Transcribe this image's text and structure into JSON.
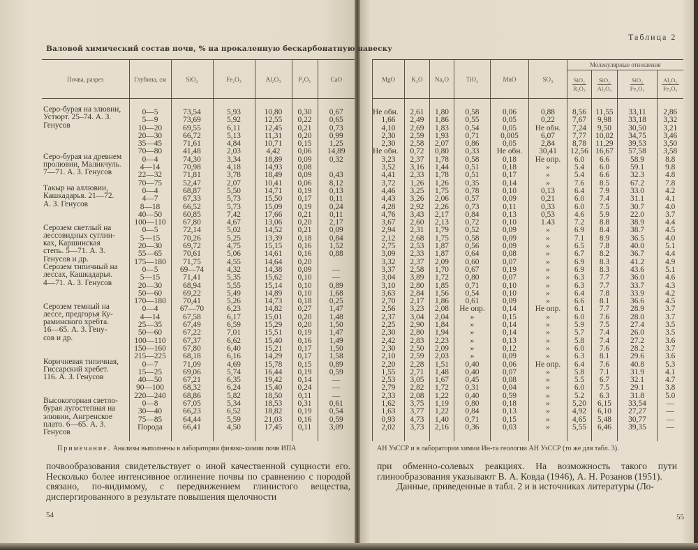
{
  "left_page": {
    "title": "Валовой химический состав почв, % на прокаленную бескарбонатную навеску",
    "page_number": "54",
    "note_label": "Примечание.",
    "note_text": " Анализы выполнены в лаборатории физико-химии почв ИПА",
    "paragraph": "почвообразования свидетельствует о иной качественной сущности его. Несколько более интенсивное оглинение почвы по сравнению с породой связано, по-видимому, с передвижением глинистого вещества, диспергированного в результате повышения щелочности"
  },
  "right_page": {
    "table_label": "Таблица 2",
    "page_number": "55",
    "note_text": "АН УзССР и в лаборатории химии Ин-та геологии АН УзССР (то же для табл. 3).",
    "paragraph1": "при обменно-солевых реакциях. На возможность такого пути глинообразования указывают В. А. Ковда (1946), А. Н. Розанов (1951).",
    "paragraph2": "Данные, приведенные в табл. 2 и в источниках литературы (Ло-"
  },
  "table": {
    "left_headers": [
      "Почва, разрез",
      "Глубина, см",
      "SiO₂",
      "Fe₂O₃",
      "Al₂O₃",
      "P₂O₅",
      "CaO"
    ],
    "right_headers": [
      "MgO",
      "K₂O",
      "Na₂O",
      "TiO₂",
      "MnO",
      "SO₃"
    ],
    "ratio_group_header": "Молекулярные отношения",
    "ratio_headers": [
      {
        "num": "SiO₂",
        "den": "R₂O₃"
      },
      {
        "num": "SiO₂",
        "den": "Al₂O₃"
      },
      {
        "num": "SiO₂",
        "den": "Fe₂O₃"
      },
      {
        "num": "Al₂O₃",
        "den": "Fe₂O₃"
      }
    ],
    "groups": [
      {
        "soil": "Серо-бурая на элювии,\nУстюрт. 25–74. А. З.\nГенусов",
        "rows": [
          [
            "0—5",
            "73,54",
            "5,93",
            "10,80",
            "0,30",
            "0,67",
            "Не обн.",
            "2,61",
            "1,80",
            "0,58",
            "0,06",
            "0,88",
            "8,56",
            "11,55",
            "33,11",
            "2,86"
          ],
          [
            "5—9",
            "73,69",
            "5,92",
            "12,55",
            "0,22",
            "0,65",
            "1,66",
            "2,49",
            "1,86",
            "0,55",
            "0,05",
            "0,22",
            "7,67",
            "9,98",
            "33,18",
            "3,32"
          ],
          [
            "10—20",
            "69,55",
            "6,11",
            "12,45",
            "0,21",
            "0,73",
            "4,10",
            "2,69",
            "1,83",
            "0,54",
            "0,05",
            "Не обн.",
            "7,24",
            "9,50",
            "30,50",
            "3,21"
          ],
          [
            "20—30",
            "66,72",
            "5,13",
            "11,31",
            "0,20",
            "0,99",
            "2,30",
            "2,59",
            "1,93",
            "0,71",
            "0,005",
            "6,07",
            "7,77",
            "10,02",
            "34,75",
            "3,46"
          ],
          [
            "35—45",
            "71,61",
            "4,84",
            "10,71",
            "0,15",
            "1,25",
            "2,30",
            "2,58",
            "2,07",
            "0,86",
            "0,05",
            "2,84",
            "8,78",
            "11,29",
            "39,53",
            "3,50"
          ],
          [
            "70—80",
            "41,48",
            "2,03",
            "4,42",
            "0,06",
            "14,89",
            "Не обн.",
            "0,72",
            "0,80",
            "0,33",
            "Не обн.",
            "30,41",
            "12,56",
            "16,67",
            "57,58",
            "3,58"
          ]
        ]
      },
      {
        "soil": "Серо-бурая на древнем\nпролювии, Маликчуль.\n7—71. А. З. Генусов",
        "rows": [
          [
            "0—4",
            "74,30",
            "3,34",
            "18,89",
            "0,09",
            "0,32",
            "3,23",
            "2,37",
            "1,78",
            "0,58",
            "0,18",
            "Не опр.",
            "6.0",
            "6.6",
            "58.9",
            "8.8"
          ],
          [
            "4—14",
            "70,98",
            "4,18",
            "14,93",
            "0,08",
            "",
            "3,52",
            "3,16",
            "1,44",
            "0,51",
            "0,18",
            "»",
            "5.4",
            "6.0",
            "59.1",
            "9.8"
          ],
          [
            "22—32",
            "71,81",
            "3,78",
            "18,49",
            "0,09",
            "0,43",
            "4,41",
            "2,33",
            "1,78",
            "0,51",
            "0,17",
            "»",
            "5.4",
            "6.6",
            "32.3",
            "4.8"
          ],
          [
            "70—75",
            "52,47",
            "2,07",
            "10,41",
            "0,06",
            "8,12",
            "3,72",
            "1,26",
            "1,26",
            "0,35",
            "0,14",
            "»",
            "7.6",
            "8.5",
            "67.2",
            "7.8"
          ]
        ]
      },
      {
        "soil": "Такыр на аллювии,\nКашкадарья. 21—72.\nА. З. Генусов",
        "rows": [
          [
            "0—4",
            "68,87",
            "5,50",
            "14,71",
            "0,19",
            "0,13",
            "4,46",
            "3,25",
            "1,75",
            "0,78",
            "0,10",
            "0,13",
            "6.4",
            "7.9",
            "33.0",
            "4.2"
          ],
          [
            "4—7",
            "67,33",
            "5,73",
            "15,50",
            "0,17",
            "0,11",
            "4,43",
            "3,26",
            "2,06",
            "0,57",
            "0,09",
            "0,21",
            "6.0",
            "7.4",
            "31.1",
            "4.1"
          ],
          [
            "8—18",
            "66,52",
            "5,73",
            "15,09",
            "0,19",
            "0,24",
            "4,28",
            "2,92",
            "2,26",
            "0,73",
            "0,11",
            "0,33",
            "6.0",
            "7.5",
            "30.7",
            "4.0"
          ],
          [
            "40—50",
            "60,85",
            "7,42",
            "17,66",
            "0,21",
            "0,11",
            "4,76",
            "3,43",
            "2,17",
            "0,84",
            "0,13",
            "0,53",
            "4.6",
            "5.9",
            "22.0",
            "3.7"
          ],
          [
            "100—110",
            "67,80",
            "4,67",
            "13,06",
            "0,20",
            "2,17",
            "3,67",
            "2,60",
            "2,13",
            "0,72",
            "0,10",
            "1.43",
            "7.2",
            "8.8",
            "38.9",
            "4.4"
          ]
        ]
      },
      {
        "soil": "Серозем светлый на\nлессовидных суглин-\nках, Каршинская\nстепь. 5—71. А. З.\nГенусов и др.",
        "rows": [
          [
            "0—5",
            "72,14",
            "5,02",
            "14,52",
            "0,21",
            "0,09",
            "2,94",
            "2,31",
            "1,79",
            "0,52",
            "0,09",
            "»",
            "6.9",
            "8.4",
            "38.7",
            "4.5"
          ],
          [
            "5—15",
            "70,26",
            "5,25",
            "13,39",
            "0,18",
            "0,84",
            "2,12",
            "2,68",
            "1,75",
            "0,58",
            "0,09",
            "»",
            "7.1",
            "8.9",
            "36.5",
            "4.0"
          ],
          [
            "20—30",
            "69,72",
            "4,75",
            "15,15",
            "0,16",
            "1,52",
            "2,75",
            "2,53",
            "1,87",
            "0,56",
            "0,09",
            "»",
            "6.5",
            "7.8",
            "40.0",
            "5.1"
          ],
          [
            "55—65",
            "70,61",
            "5,06",
            "14,61",
            "0,16",
            "0,88",
            "3,09",
            "2,33",
            "1,87",
            "0,64",
            "0,08",
            "»",
            "6.7",
            "8.2",
            "36.7",
            "4.4"
          ],
          [
            "175—180",
            "71,75",
            "4,55",
            "14,64",
            "0,20",
            "",
            "3,32",
            "2,37",
            "2,09",
            "0,60",
            "0,07",
            "»",
            "6.9",
            "8.3",
            "41.2",
            "4.9"
          ]
        ]
      },
      {
        "soil": "Серозем типичный на\nлессах, Кашкадарья.\n4—71. А. З. Генусов",
        "rows": [
          [
            "0—5",
            "69—74",
            "4,32",
            "14,38",
            "0,09",
            "—",
            "3,37",
            "2,58",
            "1,70",
            "0,67",
            "0,19",
            "»",
            "6.9",
            "8.3",
            "43.6",
            "5.1"
          ],
          [
            "5—15",
            "71,41",
            "5,35",
            "15,62",
            "0,10",
            "—",
            "3,04",
            "3,89",
            "1,72",
            "0,80",
            "0,07",
            "»",
            "6.3",
            "7.7",
            "36.0",
            "4.6"
          ],
          [
            "20—30",
            "68,94",
            "5,55",
            "15,14",
            "0,10",
            "0,89",
            "3,10",
            "2,80",
            "1,85",
            "0,71",
            "0,10",
            "»",
            "6.3",
            "7.7",
            "33.7",
            "4.3"
          ],
          [
            "50—60",
            "69,22",
            "5,49",
            "14,89",
            "0,10",
            "1,68",
            "3,63",
            "2,84",
            "1,56",
            "0,54",
            "0,10",
            "»",
            "6.4",
            "7.8",
            "33.9",
            "4.2"
          ],
          [
            "170—180",
            "70,41",
            "5,26",
            "14,73",
            "0,18",
            "0,25",
            "2,70",
            "2,17",
            "1,86",
            "0,61",
            "0,09",
            "»",
            "6.6",
            "8.1",
            "36.6",
            "4.5"
          ]
        ]
      },
      {
        "soil": "Серозем темный на\nлессе, предгорья Ку-\nраминского хребта.\n16—65. А. З. Гену-\nсов и др.",
        "rows": [
          [
            "0—4",
            "67—70",
            "6,23",
            "14,82",
            "0,27",
            "1,47",
            "2,56",
            "3,23",
            "2,08",
            "Не опр.",
            "0,14",
            "Не опр.",
            "6.1",
            "7.7",
            "28.9",
            "3.7"
          ],
          [
            "4—14",
            "67,58",
            "6,17",
            "15,01",
            "0,20",
            "1,48",
            "2,37",
            "3,04",
            "2,04",
            "»",
            "0,15",
            "»",
            "6.0",
            "7.6",
            "28.0",
            "3.7"
          ],
          [
            "25—35",
            "67,49",
            "6,59",
            "15,29",
            "0,20",
            "1,50",
            "2,25",
            "2,90",
            "1,84",
            "»",
            "0,14",
            "»",
            "5.9",
            "7.5",
            "27.4",
            "3.5"
          ],
          [
            "50—60",
            "67,22",
            "7,01",
            "15,51",
            "0,19",
            "1,47",
            "2,30",
            "2,80",
            "1,94",
            "»",
            "0,14",
            "»",
            "5.7",
            "7.4",
            "26.0",
            "3.5"
          ],
          [
            "100—110",
            "67,37",
            "6,62",
            "15,40",
            "0,16",
            "1,49",
            "2,42",
            "2,83",
            "2,23",
            "»",
            "0,13",
            "»",
            "5.8",
            "7.4",
            "27.2",
            "3.6"
          ],
          [
            "150—160",
            "67,80",
            "6,40",
            "15,21",
            "0,17",
            "1,50",
            "2,30",
            "2,50",
            "2,09",
            "»",
            "0,12",
            "»",
            "6.0",
            "7.6",
            "28.2",
            "3.7"
          ],
          [
            "215—225",
            "68,18",
            "6,16",
            "14,29",
            "0,17",
            "1,58",
            "2,10",
            "2,59",
            "2,03",
            "»",
            "0,09",
            "»",
            "6.3",
            "8.1",
            "29.6",
            "3.6"
          ]
        ]
      },
      {
        "soil": "Коричневая типичная,\nГиссарский хребет.\n116. А. З. Генусов",
        "rows": [
          [
            "0—7",
            "71,09",
            "4,69",
            "15,78",
            "0,15",
            "0,89",
            "2,20",
            "2,28",
            "1,51",
            "0,40",
            "0,06",
            "Не опр.",
            "6.4",
            "7.6",
            "40.8",
            "5.3"
          ],
          [
            "15—25",
            "69,06",
            "5,74",
            "16,44",
            "0,19",
            "0,59",
            "1,55",
            "2,71",
            "1,48",
            "0,40",
            "0,07",
            "»",
            "5.8",
            "7.1",
            "31.9",
            "4.1"
          ],
          [
            "40—50",
            "67,21",
            "6,35",
            "19,42",
            "0,14",
            "—",
            "2,53",
            "3,05",
            "1,67",
            "0,45",
            "0,08",
            "»",
            "5.5",
            "6.7",
            "32.1",
            "4.7"
          ],
          [
            "90—100",
            "68,32",
            "6,24",
            "15,40",
            "0,24",
            "—",
            "2,79",
            "2,82",
            "1,72",
            "0,31",
            "0,04",
            "»",
            "6.0",
            "7.5",
            "29.1",
            "3.8"
          ],
          [
            "220—240",
            "68,86",
            "5,82",
            "18,50",
            "0,11",
            "—",
            "2,33",
            "2,08",
            "1,22",
            "0,40",
            "0,59",
            "»",
            "5.2",
            "6.3",
            "31.8",
            "5.0"
          ]
        ]
      },
      {
        "soil": "Высокогорная светло-\nбурая лугостепная на\nэлювии, Ангренское\nплато. 6—65. А. З.\nГенусов",
        "rows": [
          [
            "0—8",
            "67,05",
            "5,34",
            "18,53",
            "0,31",
            "0,61",
            "1,62",
            "3,75",
            "1,19",
            "0,80",
            "0,18",
            "»",
            "5,20",
            "6,15",
            "33,54",
            "—"
          ],
          [
            "30—40",
            "66,23",
            "6,52",
            "18,82",
            "0,19",
            "0,54",
            "1,63",
            "3,77",
            "1,22",
            "0,84",
            "0,13",
            "»",
            "4,92",
            "6,10",
            "27,27",
            "—"
          ],
          [
            "75—85",
            "64,44",
            "5,59",
            "21,03",
            "0,16",
            "0,59",
            "0,93",
            "4,73",
            "1,40",
            "0,71",
            "0,15",
            "»",
            "4,65",
            "5,48",
            "30,77",
            "—"
          ],
          [
            "Порода",
            "66,41",
            "4,50",
            "17,45",
            "0,11",
            "3,09",
            "2,02",
            "3,73",
            "2,16",
            "0,36",
            "0,03",
            "»",
            "5,55",
            "6,46",
            "39,35",
            "—"
          ]
        ]
      }
    ]
  }
}
